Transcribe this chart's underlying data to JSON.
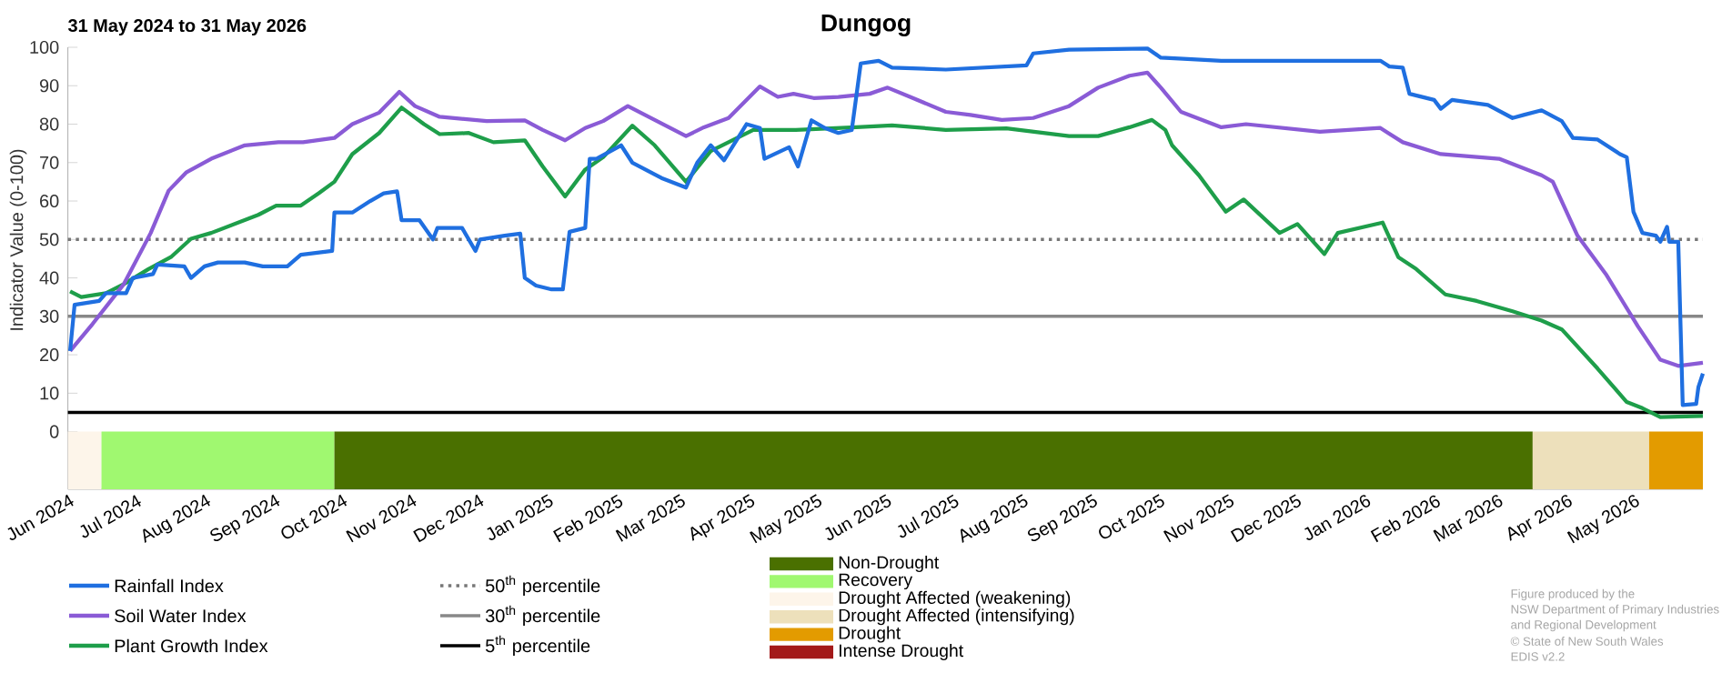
{
  "chart_data": {
    "type": "line",
    "title": "Dungog",
    "subtitle": "31 May 2024 to 31 May 2026",
    "ylabel": "Indicator Value (0-100)",
    "xlim": [
      "2024-05-31",
      "2026-05-31"
    ],
    "ylim": [
      -15,
      100
    ],
    "yticks": [
      0,
      10,
      20,
      30,
      40,
      50,
      60,
      70,
      80,
      90,
      100
    ],
    "xticks": [
      {
        "value": "2024-06-01",
        "label": "Jun 2024"
      },
      {
        "value": "2024-07-01",
        "label": "Jul 2024"
      },
      {
        "value": "2024-08-01",
        "label": "Aug 2024"
      },
      {
        "value": "2024-09-01",
        "label": "Sep 2024"
      },
      {
        "value": "2024-10-01",
        "label": "Oct 2024"
      },
      {
        "value": "2024-11-01",
        "label": "Nov 2024"
      },
      {
        "value": "2024-12-01",
        "label": "Dec 2024"
      },
      {
        "value": "2025-01-01",
        "label": "Jan 2025"
      },
      {
        "value": "2025-02-01",
        "label": "Feb 2025"
      },
      {
        "value": "2025-03-01",
        "label": "Mar 2025"
      },
      {
        "value": "2025-04-01",
        "label": "Apr 2025"
      },
      {
        "value": "2025-05-01",
        "label": "May 2025"
      },
      {
        "value": "2025-06-01",
        "label": "Jun 2025"
      },
      {
        "value": "2025-07-01",
        "label": "Jul 2025"
      },
      {
        "value": "2025-08-01",
        "label": "Aug 2025"
      },
      {
        "value": "2025-09-01",
        "label": "Sep 2025"
      },
      {
        "value": "2025-10-01",
        "label": "Oct 2025"
      },
      {
        "value": "2025-11-01",
        "label": "Nov 2025"
      },
      {
        "value": "2025-12-01",
        "label": "Dec 2025"
      },
      {
        "value": "2026-01-01",
        "label": "Jan 2026"
      },
      {
        "value": "2026-02-01",
        "label": "Feb 2026"
      },
      {
        "value": "2026-03-01",
        "label": "Mar 2026"
      },
      {
        "value": "2026-04-01",
        "label": "Apr 2026"
      },
      {
        "value": "2026-05-01",
        "label": "May 2026"
      }
    ],
    "legend": "bottom",
    "series": [
      {
        "name": "Rainfall Index",
        "color": "#1f6fe0",
        "x": [
          "2024-06-01",
          "2024-06-03",
          "2024-06-14",
          "2024-06-17",
          "2024-06-26",
          "2024-06-29",
          "2024-07-08",
          "2024-07-10",
          "2024-07-22",
          "2024-07-25",
          "2024-07-31",
          "2024-08-06",
          "2024-08-18",
          "2024-08-26",
          "2024-09-06",
          "2024-09-12",
          "2024-09-26",
          "2024-09-27",
          "2024-10-05",
          "2024-10-13",
          "2024-10-19",
          "2024-10-25",
          "2024-10-27",
          "2024-11-04",
          "2024-11-10",
          "2024-11-12",
          "2024-11-23",
          "2024-11-29",
          "2024-12-01",
          "2024-12-12",
          "2024-12-19",
          "2024-12-21",
          "2024-12-26",
          "2025-01-02",
          "2025-01-07",
          "2025-01-10",
          "2025-01-17",
          "2025-01-19",
          "2025-01-22",
          "2025-02-02",
          "2025-02-07",
          "2025-02-20",
          "2025-03-03",
          "2025-03-08",
          "2025-03-14",
          "2025-03-20",
          "2025-03-30",
          "2025-04-05",
          "2025-04-07",
          "2025-04-18",
          "2025-04-22",
          "2025-04-28",
          "2025-05-04",
          "2025-05-10",
          "2025-05-16",
          "2025-05-20",
          "2025-05-28",
          "2025-06-03",
          "2025-06-27",
          "2025-08-02",
          "2025-08-05",
          "2025-08-21",
          "2025-09-25",
          "2025-10-01",
          "2025-10-11",
          "2025-10-28",
          "2026-01-07",
          "2026-01-11",
          "2026-01-17",
          "2026-01-20",
          "2026-01-31",
          "2026-02-03",
          "2026-02-08",
          "2026-02-24",
          "2026-03-07",
          "2026-03-12",
          "2026-03-20",
          "2026-03-29",
          "2026-04-03",
          "2026-04-14",
          "2026-04-24",
          "2026-04-27",
          "2026-04-30",
          "2026-05-04",
          "2026-05-10",
          "2026-05-12",
          "2026-05-15",
          "2026-05-16",
          "2026-05-20",
          "2026-05-22",
          "2026-05-28",
          "2026-05-29",
          "2026-05-31"
        ],
        "values": [
          21,
          33,
          34,
          36,
          36,
          40,
          41,
          43.5,
          43,
          40,
          43,
          44,
          44,
          43,
          43,
          46,
          47,
          57,
          57,
          60,
          62,
          62.5,
          55,
          55,
          50,
          53,
          53,
          47,
          50,
          51,
          51.5,
          40,
          38,
          37,
          37,
          52,
          53,
          71,
          71,
          74.5,
          70,
          66,
          63.5,
          70,
          74.5,
          70.6,
          80,
          79,
          71,
          74,
          69,
          81,
          79,
          77.7,
          78.5,
          95.8,
          96.5,
          94.7,
          94.2,
          95.3,
          98.4,
          99.4,
          99.7,
          97.3,
          97,
          96.5,
          96.5,
          95,
          94.7,
          87.9,
          86.3,
          84,
          86.3,
          85,
          81.6,
          82.4,
          83.6,
          80.8,
          76.4,
          76,
          72.2,
          71.4,
          57.2,
          51.7,
          51,
          49.4,
          53.3,
          49.4,
          49.4,
          6.9,
          7.2,
          11.6,
          15.1
        ]
      },
      {
        "name": "Soil Water Index",
        "color": "#8a5bd6",
        "x": [
          "2024-06-01",
          "2024-06-11",
          "2024-06-25",
          "2024-07-07",
          "2024-07-15",
          "2024-07-23",
          "2024-08-03",
          "2024-08-18",
          "2024-09-02",
          "2024-09-13",
          "2024-09-27",
          "2024-10-05",
          "2024-10-17",
          "2024-10-26",
          "2024-11-02",
          "2024-11-13",
          "2024-12-04",
          "2024-12-21",
          "2024-12-29",
          "2025-01-08",
          "2025-01-17",
          "2025-01-25",
          "2025-02-05",
          "2025-03-03",
          "2025-03-11",
          "2025-03-22",
          "2025-04-05",
          "2025-04-13",
          "2025-04-20",
          "2025-04-29",
          "2025-05-10",
          "2025-05-24",
          "2025-06-01",
          "2025-06-11",
          "2025-06-27",
          "2025-07-08",
          "2025-07-22",
          "2025-08-05",
          "2025-08-21",
          "2025-09-03",
          "2025-09-17",
          "2025-09-25",
          "2025-10-01",
          "2025-10-10",
          "2025-10-28",
          "2025-11-08",
          "2025-12-11",
          "2026-01-07",
          "2026-01-17",
          "2026-02-03",
          "2026-03-01",
          "2026-03-20",
          "2026-03-25",
          "2026-04-05",
          "2026-04-18",
          "2026-05-02",
          "2026-05-12",
          "2026-05-20",
          "2026-05-31"
        ],
        "values": [
          21,
          28,
          38.4,
          51.7,
          62.7,
          67.5,
          71,
          74.5,
          75.3,
          75.3,
          76.4,
          80,
          83,
          88.4,
          84.7,
          81.9,
          80.8,
          81,
          78.5,
          75.8,
          79,
          80.8,
          84.7,
          76.9,
          79.2,
          81.6,
          89.8,
          87.1,
          87.9,
          86.8,
          87.1,
          87.9,
          89.5,
          87.1,
          83.2,
          82.4,
          81.1,
          81.6,
          84.7,
          89.5,
          92.6,
          93.4,
          89.5,
          83.2,
          79.2,
          80,
          78,
          79,
          75.3,
          72.2,
          71,
          66.7,
          65,
          51,
          40.7,
          27.4,
          18.7,
          17.1,
          17.9
        ]
      },
      {
        "name": "Plant Growth Index",
        "color": "#1e9e4a",
        "x": [
          "2024-06-01",
          "2024-06-06",
          "2024-06-17",
          "2024-06-25",
          "2024-07-06",
          "2024-07-16",
          "2024-07-25",
          "2024-08-03",
          "2024-08-24",
          "2024-09-01",
          "2024-09-12",
          "2024-09-20",
          "2024-09-27",
          "2024-10-05",
          "2024-10-17",
          "2024-10-27",
          "2024-11-06",
          "2024-11-13",
          "2024-11-26",
          "2024-12-07",
          "2024-12-21",
          "2024-12-29",
          "2025-01-08",
          "2025-01-17",
          "2025-01-25",
          "2025-02-07",
          "2025-02-17",
          "2025-03-03",
          "2025-03-14",
          "2025-04-02",
          "2025-04-21",
          "2025-05-18",
          "2025-06-03",
          "2025-06-27",
          "2025-07-24",
          "2025-08-21",
          "2025-09-03",
          "2025-09-17",
          "2025-09-27",
          "2025-10-03",
          "2025-10-06",
          "2025-10-18",
          "2025-10-30",
          "2025-11-07",
          "2025-11-23",
          "2025-12-01",
          "2025-12-13",
          "2025-12-19",
          "2026-01-08",
          "2026-01-15",
          "2026-01-23",
          "2026-02-05",
          "2026-02-19",
          "2026-03-07",
          "2026-03-20",
          "2026-03-29",
          "2026-04-14",
          "2026-04-27",
          "2026-05-04",
          "2026-05-12",
          "2026-05-31"
        ],
        "values": [
          36.5,
          35,
          36,
          38.4,
          42.3,
          45.4,
          50.2,
          51.7,
          56.4,
          58.8,
          58.8,
          62,
          65,
          72.2,
          77.7,
          84.3,
          80,
          77.4,
          77.7,
          75.3,
          75.8,
          69,
          61.2,
          68.2,
          71.4,
          79.6,
          74.5,
          65,
          73,
          78.5,
          78.5,
          79.2,
          79.7,
          78.5,
          78.9,
          76.9,
          76.9,
          79.2,
          81.1,
          78.5,
          74.5,
          66.7,
          57.2,
          60.4,
          51.7,
          54,
          46.2,
          51.7,
          54.4,
          45.4,
          42.3,
          35.7,
          34,
          31.3,
          28.9,
          26.6,
          16.4,
          7.7,
          6.1,
          3.8,
          4.1
        ]
      }
    ],
    "ref_lines": [
      {
        "axis": "y",
        "value": 50,
        "label": "50$^{th}$ percentile",
        "color": "#777777",
        "line_style": "dotted"
      },
      {
        "axis": "y",
        "value": 30,
        "label": "30$^{th}$ percentile",
        "color": "#888888",
        "line_style": "solid"
      },
      {
        "axis": "y",
        "value": 5,
        "label": "5$^{th}$ percentile",
        "color": "#000000",
        "line_style": "solid"
      }
    ],
    "bands": [
      {
        "axis": "x",
        "from": "2024-05-31",
        "to": "2024-06-15",
        "label": "Drought Affected (weakening)",
        "color": "#fdf5ea"
      },
      {
        "axis": "x",
        "from": "2024-06-15",
        "to": "2024-09-27",
        "label": "Recovery",
        "color": "#a0f870"
      },
      {
        "axis": "x",
        "from": "2024-09-27",
        "to": "2026-03-16",
        "label": "Non-Drought",
        "color": "#4a7000"
      },
      {
        "axis": "x",
        "from": "2026-03-16",
        "to": "2026-05-07",
        "label": "Drought Affected (intensifying)",
        "color": "#ede0bb"
      },
      {
        "axis": "x",
        "from": "2026-05-07",
        "to": "2026-05-31",
        "label": "Drought",
        "color": "#e39b00"
      }
    ],
    "annotations": [
      "Figure produced by the",
      "NSW Department of Primary Industries",
      "and Regional Development",
      "© State of New South Wales",
      "EDIS v2.2",
      {
        "text": "Intense Drought"
      }
    ]
  }
}
